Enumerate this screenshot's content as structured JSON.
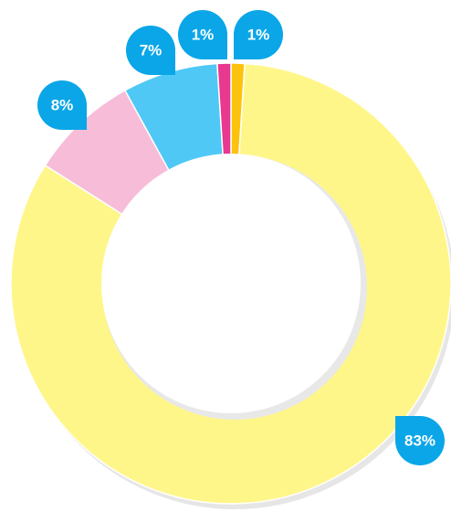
{
  "chart_data": {
    "type": "donut",
    "values": [
      1,
      83,
      8,
      7,
      1
    ],
    "value_labels": [
      "1%",
      "83%",
      "8%",
      "7%",
      "1%"
    ],
    "colors": [
      "#fdc20c",
      "#fff68a",
      "#f7bcd8",
      "#4fc8f5",
      "#e8388f"
    ],
    "label_color": "#0aa6e8"
  }
}
